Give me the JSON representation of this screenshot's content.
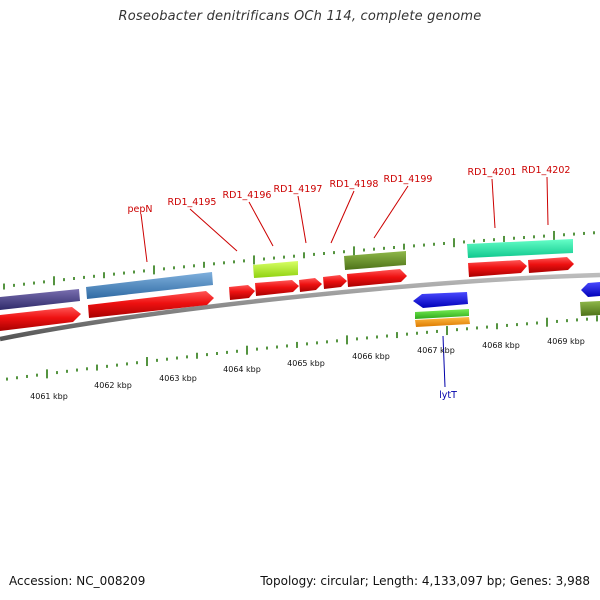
{
  "title": "Roseobacter denitrificans OCh 114, complete genome",
  "footer": {
    "accession": "Accession: NC_008209",
    "topology": "Topology: circular; Length: 4,133,097 bp; Genes: 3,988"
  },
  "scale_labels": [
    "4061 kbp",
    "4062 kbp",
    "4063 kbp",
    "4064 kbp",
    "4065 kbp",
    "4066 kbp",
    "4067 kbp",
    "4068 kbp",
    "4069 kbp"
  ],
  "gene_labels": {
    "pepN": "pepN",
    "rd1_4195": "RD1_4195",
    "rd1_4196": "RD1_4196",
    "rd1_4197": "RD1_4197",
    "rd1_4198": "RD1_4198",
    "rd1_4199": "RD1_4199",
    "rd1_4201": "RD1_4201",
    "rd1_4202": "RD1_4202",
    "lytT": "lytT"
  },
  "colors": {
    "forward_label": "#cc0000",
    "reverse_label": "#0000aa",
    "cds_red": "#ee1111",
    "backbone": "#8a8a8a",
    "tick": "#2a7a10"
  }
}
